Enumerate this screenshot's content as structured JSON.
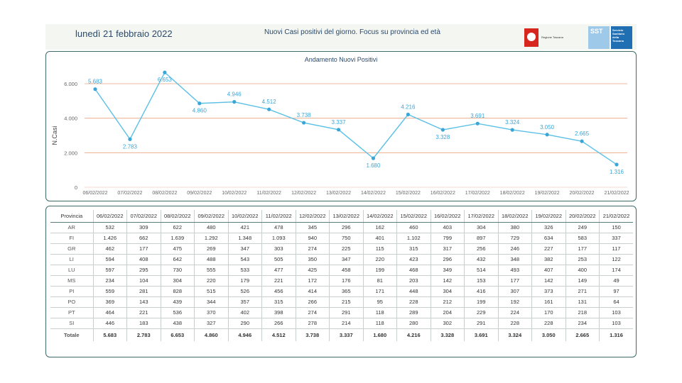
{
  "header": {
    "date": "lunedì 21 febbraio 2022",
    "title": "Nuovi Casi positivi del giorno. Focus su provincia ed età",
    "logo_regione_text": "Regione Toscana",
    "logo_sst_abbr": "SST",
    "logo_sst_text": [
      "Servizio",
      "Sanitario",
      "della",
      "Toscana"
    ]
  },
  "chart_data": {
    "type": "line",
    "title": "Andamento Nuovi Positivi",
    "xlabel": "",
    "ylabel": "N.Casi",
    "ylim": [
      0,
      7000
    ],
    "yticks": [
      0,
      2000,
      4000,
      6000
    ],
    "ytick_labels": [
      "0",
      "2.000",
      "4.000",
      "6.000"
    ],
    "grid": true,
    "categories": [
      "06/02/2022",
      "07/02/2022",
      "08/02/2022",
      "09/02/2022",
      "10/02/2022",
      "11/02/2022",
      "12/02/2022",
      "13/02/2022",
      "14/02/2022",
      "15/02/2022",
      "16/02/2022",
      "17/02/2022",
      "18/02/2022",
      "19/02/2022",
      "20/02/2022",
      "21/02/2022"
    ],
    "values": [
      5683,
      2783,
      6653,
      4860,
      4946,
      4512,
      3738,
      3337,
      1680,
      4216,
      3328,
      3691,
      3324,
      3050,
      2665,
      1316
    ],
    "value_labels": [
      "5.683",
      "2.783",
      "6.653",
      "4.860",
      "4.946",
      "4.512",
      "3.738",
      "3.337",
      "1.680",
      "4.216",
      "3.328",
      "3.691",
      "3.324",
      "3.050",
      "2.665",
      "1.316"
    ],
    "label_positions": [
      "above",
      "below",
      "below",
      "below",
      "above",
      "above",
      "above",
      "above",
      "below",
      "above",
      "below",
      "above",
      "above",
      "above",
      "above",
      "below"
    ],
    "colors": {
      "line": "#5bc0e6",
      "marker": "#3aa6d8",
      "grid": "#e8a27f",
      "label": "#3aa6d8"
    }
  },
  "table": {
    "headers": [
      "Provincia",
      "06/02/2022",
      "07/02/2022",
      "08/02/2022",
      "09/02/2022",
      "10/02/2022",
      "11/02/2022",
      "12/02/2022",
      "13/02/2022",
      "14/02/2022",
      "15/02/2022",
      "16/02/2022",
      "17/02/2022",
      "18/02/2022",
      "19/02/2022",
      "20/02/2022",
      "21/02/2022"
    ],
    "rows": [
      [
        "AR",
        "532",
        "309",
        "622",
        "480",
        "421",
        "478",
        "345",
        "296",
        "162",
        "460",
        "403",
        "304",
        "380",
        "326",
        "249",
        "150"
      ],
      [
        "FI",
        "1.426",
        "662",
        "1.639",
        "1.292",
        "1.348",
        "1.093",
        "940",
        "750",
        "401",
        "1.102",
        "799",
        "897",
        "729",
        "634",
        "583",
        "337"
      ],
      [
        "GR",
        "462",
        "177",
        "475",
        "269",
        "347",
        "303",
        "274",
        "225",
        "115",
        "315",
        "317",
        "256",
        "246",
        "227",
        "177",
        "117"
      ],
      [
        "LI",
        "594",
        "408",
        "642",
        "488",
        "543",
        "505",
        "350",
        "347",
        "220",
        "423",
        "296",
        "432",
        "348",
        "382",
        "253",
        "122"
      ],
      [
        "LU",
        "597",
        "295",
        "730",
        "555",
        "533",
        "477",
        "425",
        "458",
        "199",
        "468",
        "349",
        "514",
        "493",
        "407",
        "400",
        "174"
      ],
      [
        "MS",
        "234",
        "104",
        "304",
        "220",
        "179",
        "221",
        "172",
        "176",
        "81",
        "203",
        "142",
        "153",
        "177",
        "142",
        "149",
        "49"
      ],
      [
        "PI",
        "559",
        "281",
        "828",
        "515",
        "526",
        "456",
        "414",
        "365",
        "171",
        "448",
        "304",
        "416",
        "307",
        "373",
        "271",
        "97"
      ],
      [
        "PO",
        "369",
        "143",
        "439",
        "344",
        "357",
        "315",
        "266",
        "215",
        "95",
        "228",
        "212",
        "199",
        "192",
        "161",
        "131",
        "64"
      ],
      [
        "PT",
        "464",
        "221",
        "536",
        "370",
        "402",
        "398",
        "274",
        "291",
        "118",
        "289",
        "204",
        "229",
        "224",
        "170",
        "218",
        "103"
      ],
      [
        "SI",
        "446",
        "183",
        "438",
        "327",
        "290",
        "266",
        "278",
        "214",
        "118",
        "280",
        "302",
        "291",
        "228",
        "228",
        "234",
        "103"
      ]
    ],
    "total": [
      "Totale",
      "5.683",
      "2.783",
      "6.653",
      "4.860",
      "4.946",
      "4.512",
      "3.738",
      "3.337",
      "1.680",
      "4.216",
      "3.328",
      "3.691",
      "3.324",
      "3.050",
      "2.665",
      "1.316"
    ]
  }
}
